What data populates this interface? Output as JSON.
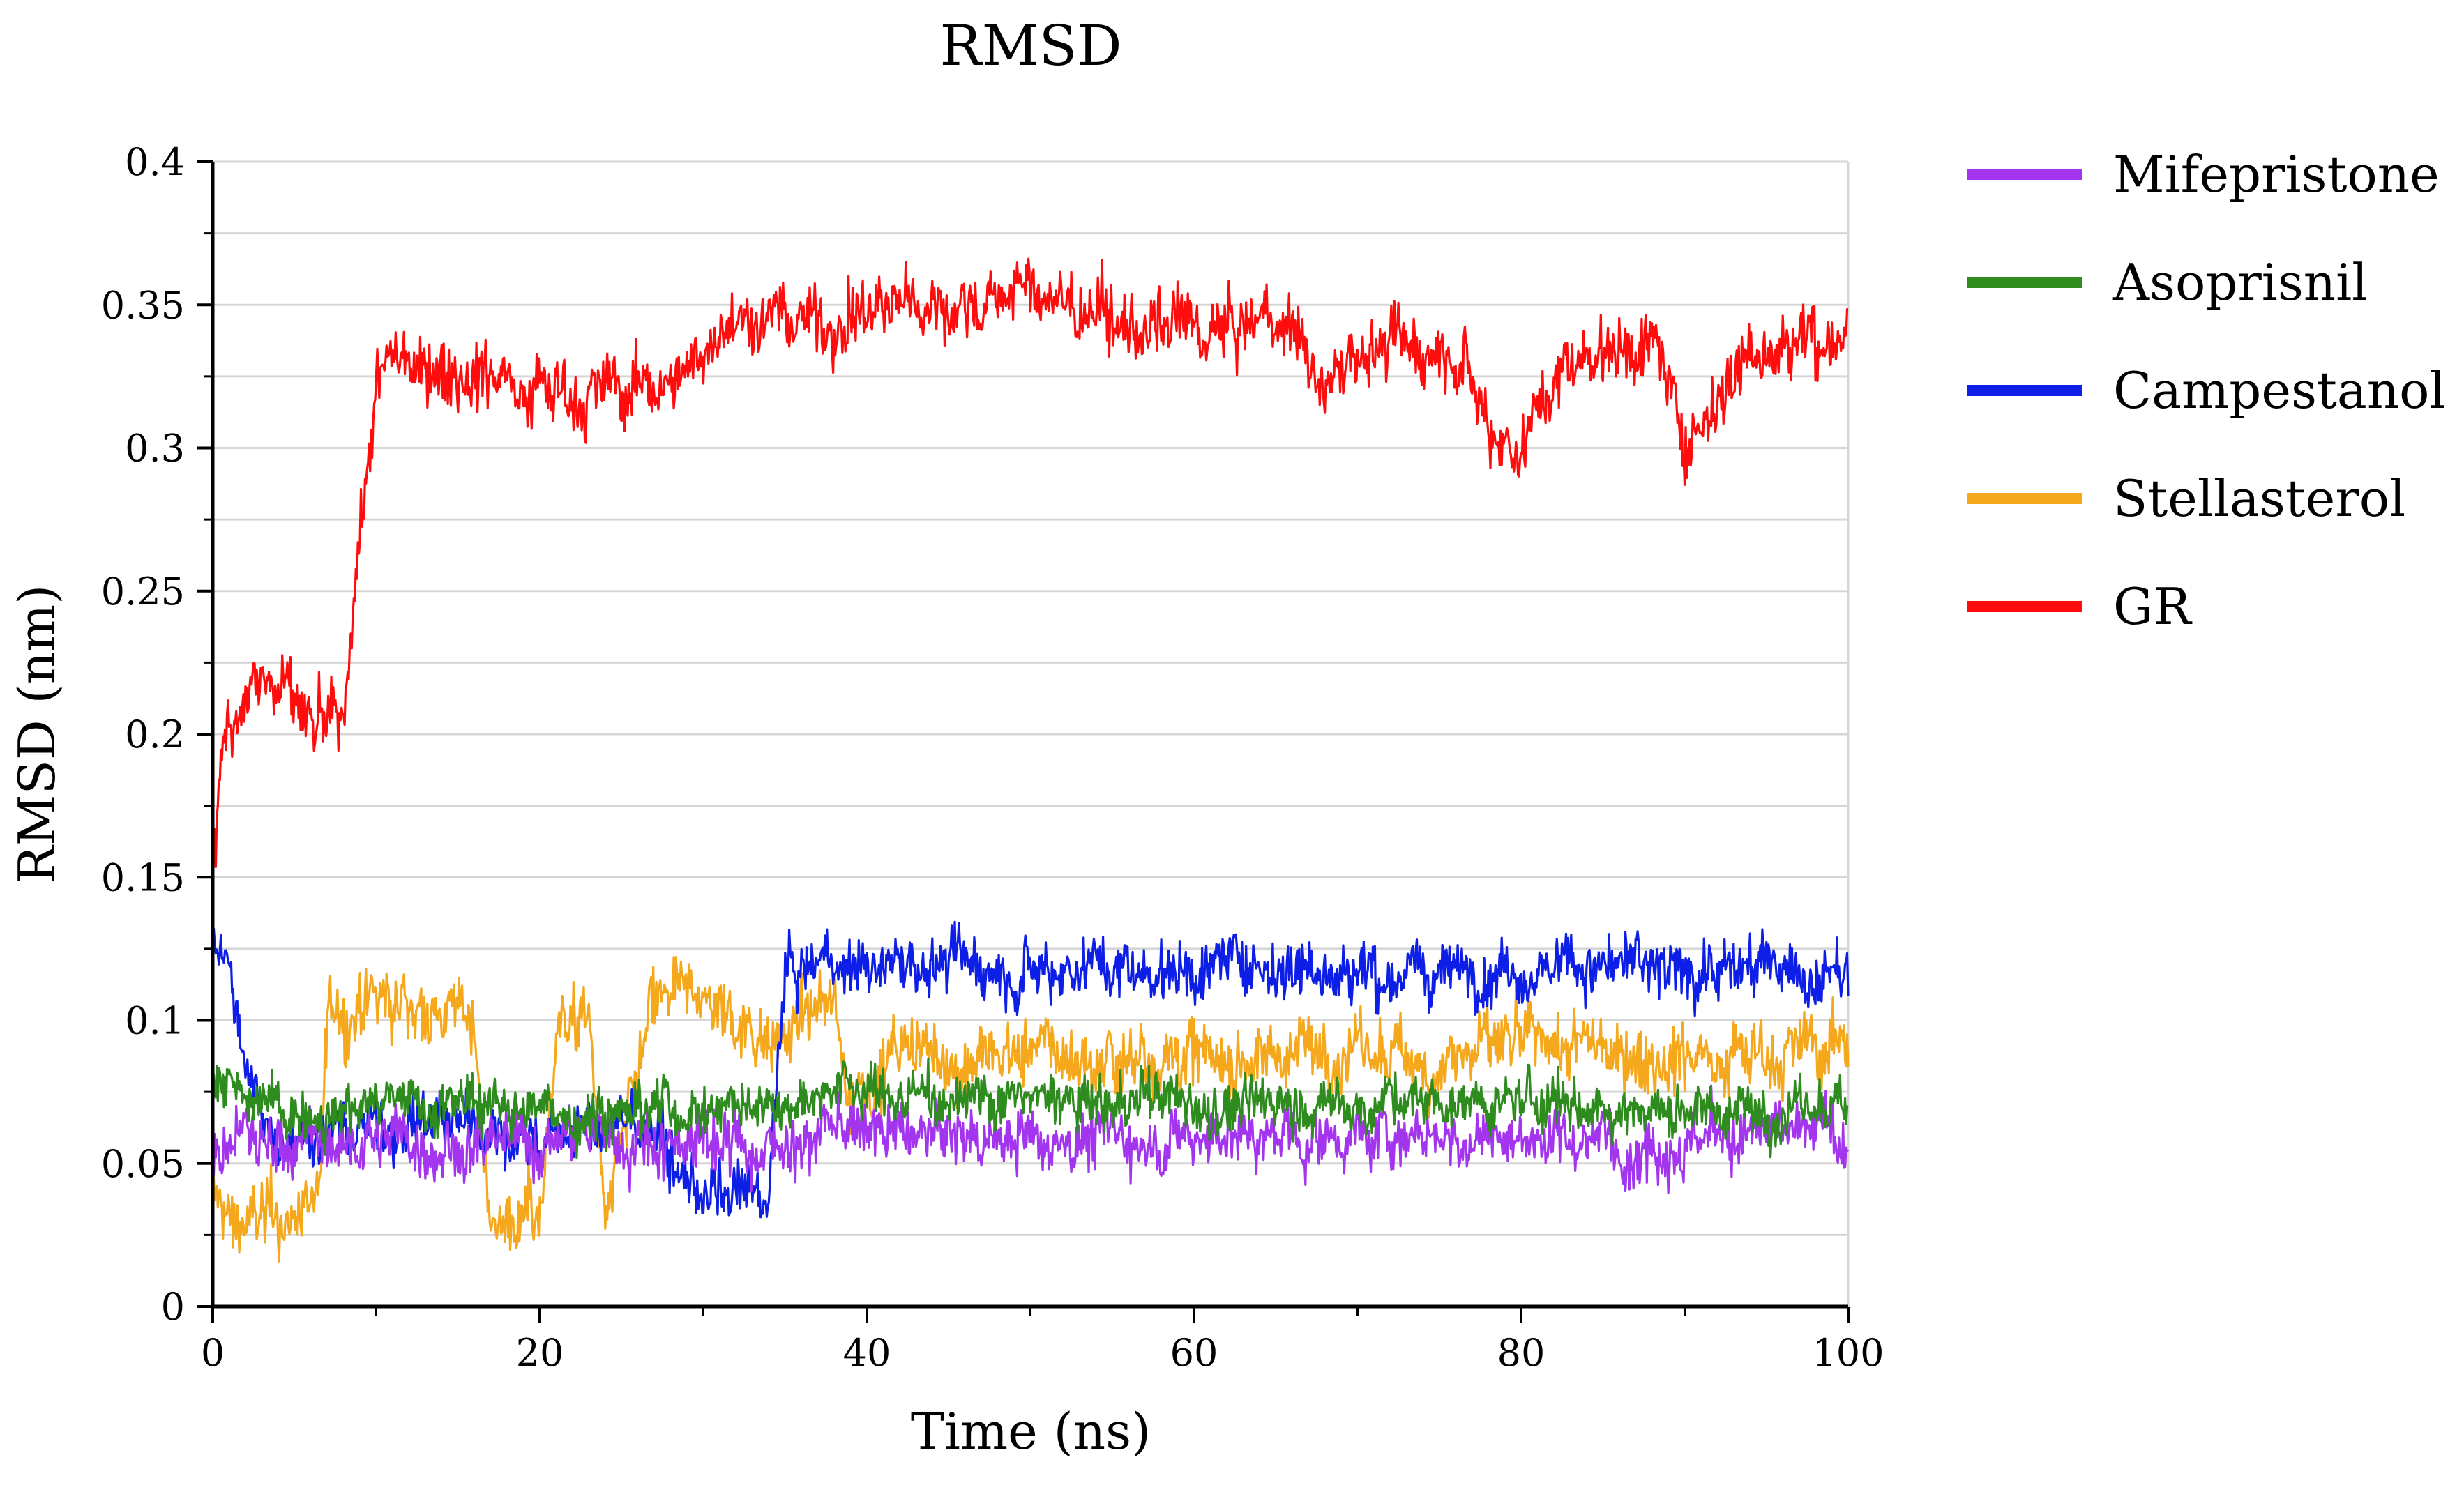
{
  "chart_data": {
    "type": "line",
    "title": "RMSD",
    "xlabel": "Time (ns)",
    "ylabel": "RMSD (nm)",
    "xlim": [
      0,
      100
    ],
    "ylim": [
      0,
      0.4
    ],
    "xticks": [
      0,
      20,
      40,
      60,
      80,
      100
    ],
    "xtick_labels": [
      "0",
      "20",
      "40",
      "60",
      "80",
      "100"
    ],
    "yticks": [
      0,
      0.05,
      0.1,
      0.15,
      0.2,
      0.25,
      0.3,
      0.35,
      0.4
    ],
    "ytick_labels": [
      "0",
      "0.05",
      "0.1",
      "0.15",
      "0.2",
      "0.25",
      "0.3",
      "0.35",
      "0.4"
    ],
    "grid": "horizontal",
    "legend_position": "right",
    "series": [
      {
        "name": "Mifepristone",
        "color": "#a335ee",
        "noise": 0.008,
        "x": [
          0,
          1,
          2,
          4,
          6,
          8,
          10,
          14,
          18,
          22,
          26,
          30,
          34,
          38,
          42,
          46,
          50,
          54,
          58,
          62,
          66,
          70,
          74,
          78,
          82,
          86,
          90,
          94,
          98,
          100
        ],
        "y": [
          0.05,
          0.055,
          0.06,
          0.055,
          0.058,
          0.055,
          0.06,
          0.058,
          0.055,
          0.06,
          0.058,
          0.06,
          0.055,
          0.062,
          0.06,
          0.058,
          0.06,
          0.06,
          0.058,
          0.06,
          0.058,
          0.06,
          0.06,
          0.058,
          0.06,
          0.058,
          0.06,
          0.058,
          0.06,
          0.06
        ]
      },
      {
        "name": "Asoprisnil",
        "color": "#2e8b1e",
        "noise": 0.007,
        "x": [
          0,
          1,
          2,
          4,
          6,
          8,
          10,
          14,
          18,
          22,
          26,
          30,
          34,
          38,
          42,
          46,
          50,
          54,
          58,
          62,
          66,
          70,
          74,
          78,
          82,
          86,
          90,
          94,
          98,
          100
        ],
        "y": [
          0.075,
          0.08,
          0.07,
          0.068,
          0.07,
          0.072,
          0.07,
          0.072,
          0.07,
          0.068,
          0.07,
          0.07,
          0.072,
          0.078,
          0.072,
          0.075,
          0.072,
          0.07,
          0.072,
          0.07,
          0.072,
          0.07,
          0.072,
          0.07,
          0.072,
          0.07,
          0.07,
          0.068,
          0.07,
          0.068
        ]
      },
      {
        "name": "Campestanol",
        "color": "#0d1ee6",
        "noise": 0.008,
        "x": [
          0,
          1,
          2,
          4,
          6,
          8,
          10,
          14,
          18,
          22,
          26,
          28,
          30,
          32,
          34,
          35,
          38,
          42,
          46,
          50,
          54,
          58,
          62,
          66,
          70,
          74,
          78,
          82,
          86,
          90,
          94,
          98,
          100
        ],
        "y": [
          0.13,
          0.12,
          0.08,
          0.06,
          0.06,
          0.06,
          0.065,
          0.065,
          0.06,
          0.06,
          0.065,
          0.05,
          0.04,
          0.035,
          0.04,
          0.115,
          0.12,
          0.12,
          0.12,
          0.12,
          0.12,
          0.118,
          0.12,
          0.12,
          0.118,
          0.115,
          0.12,
          0.12,
          0.118,
          0.118,
          0.12,
          0.115,
          0.115
        ]
      },
      {
        "name": "Stellasterol",
        "color": "#f5a81c",
        "noise": 0.009,
        "x": [
          0,
          1,
          3,
          5,
          6.5,
          7,
          10,
          13,
          16,
          17,
          20,
          21,
          23,
          24,
          27,
          30,
          32,
          34,
          38,
          39,
          42,
          46,
          50,
          54,
          58,
          62,
          66,
          70,
          74,
          78,
          82,
          86,
          90,
          94,
          98,
          100
        ],
        "y": [
          0.04,
          0.03,
          0.03,
          0.03,
          0.04,
          0.1,
          0.105,
          0.105,
          0.1,
          0.03,
          0.03,
          0.1,
          0.1,
          0.03,
          0.105,
          0.108,
          0.1,
          0.095,
          0.105,
          0.075,
          0.09,
          0.085,
          0.09,
          0.085,
          0.09,
          0.085,
          0.09,
          0.09,
          0.085,
          0.09,
          0.09,
          0.09,
          0.088,
          0.09,
          0.09,
          0.09
        ]
      },
      {
        "name": "GR",
        "color": "#ff0d0d",
        "noise": 0.009,
        "x": [
          0,
          0.5,
          1,
          3,
          5,
          6,
          8,
          9,
          10,
          11,
          14,
          18,
          22,
          26,
          29,
          31,
          34,
          38,
          42,
          46,
          50,
          54,
          58,
          62,
          66,
          68,
          70,
          74,
          76,
          78,
          80,
          82,
          84,
          86,
          88,
          90,
          92,
          94,
          98,
          100
        ],
        "y": [
          0.15,
          0.19,
          0.21,
          0.22,
          0.21,
          0.2,
          0.2,
          0.27,
          0.32,
          0.33,
          0.33,
          0.325,
          0.32,
          0.32,
          0.325,
          0.345,
          0.345,
          0.345,
          0.35,
          0.35,
          0.355,
          0.345,
          0.34,
          0.34,
          0.345,
          0.32,
          0.335,
          0.335,
          0.34,
          0.31,
          0.3,
          0.325,
          0.335,
          0.335,
          0.34,
          0.3,
          0.32,
          0.335,
          0.34,
          0.34
        ]
      }
    ]
  }
}
